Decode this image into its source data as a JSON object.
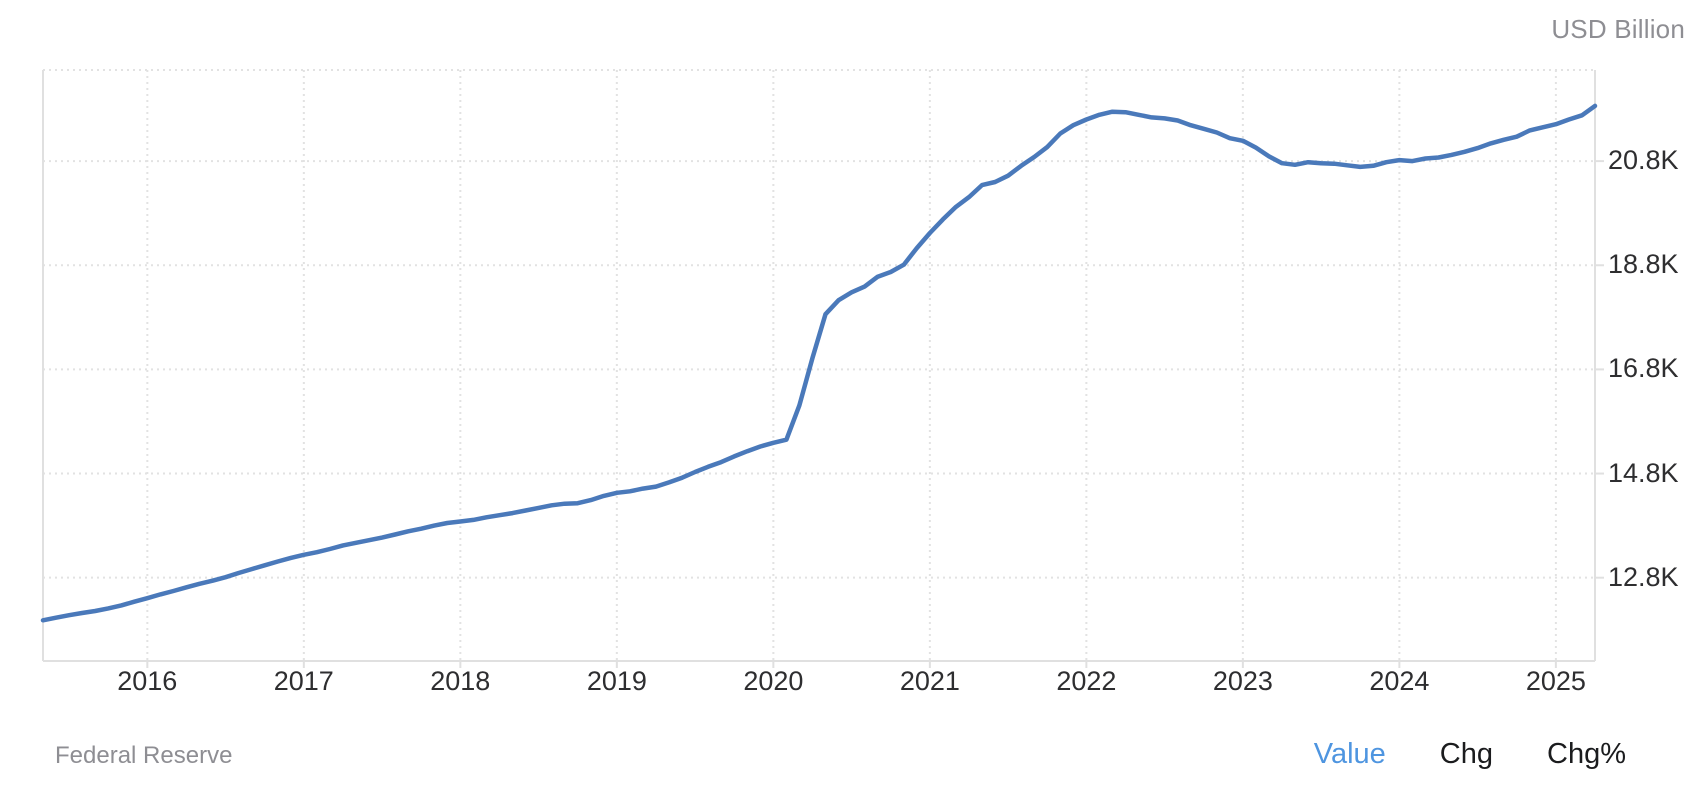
{
  "header": {
    "unit": "USD Billion"
  },
  "footer": {
    "source": "Federal Reserve",
    "toggles": [
      {
        "label": "Value",
        "active": true
      },
      {
        "label": "Chg",
        "active": false
      },
      {
        "label": "Chg%",
        "active": false
      }
    ]
  },
  "colors": {
    "line": "#4a79ba",
    "grid": "#e2e2e2",
    "plot_border": "#e0e0e0",
    "tick": "#e0e0e0",
    "axis_text": "#2e2e30",
    "muted_text": "#8e8e93",
    "toggle_active": "#4e95e0",
    "toggle_text": "#1b1c1e",
    "background": "#ffffff"
  },
  "chart_data": {
    "type": "line",
    "unit": "USD Billion",
    "source": "Federal Reserve",
    "grid": true,
    "legend_position": "bottom-right",
    "xlim": [
      2015.3333,
      2025.25
    ],
    "ylim": [
      11200,
      22550
    ],
    "x_ticks": [
      2016,
      2017,
      2018,
      2019,
      2020,
      2021,
      2022,
      2023,
      2024,
      2025
    ],
    "x_tick_labels": [
      "2016",
      "2017",
      "2018",
      "2019",
      "2020",
      "2021",
      "2022",
      "2023",
      "2024",
      "2025"
    ],
    "y_ticks": [
      20800,
      18800,
      16800,
      14800,
      12800
    ],
    "y_tick_labels": [
      "20.8K",
      "18.8K",
      "16.8K",
      "14.8K",
      "12.8K"
    ],
    "series": [
      {
        "name": "Value",
        "points": [
          [
            "2015-05",
            11982
          ],
          [
            "2015-06",
            12032
          ],
          [
            "2015-07",
            12080
          ],
          [
            "2015-08",
            12122
          ],
          [
            "2015-09",
            12160
          ],
          [
            "2015-10",
            12210
          ],
          [
            "2015-11",
            12268
          ],
          [
            "2015-12",
            12338
          ],
          [
            "2016-01",
            12407
          ],
          [
            "2016-02",
            12479
          ],
          [
            "2016-03",
            12545
          ],
          [
            "2016-04",
            12616
          ],
          [
            "2016-05",
            12683
          ],
          [
            "2016-06",
            12743
          ],
          [
            "2016-07",
            12810
          ],
          [
            "2016-08",
            12890
          ],
          [
            "2016-09",
            12965
          ],
          [
            "2016-10",
            13037
          ],
          [
            "2016-11",
            13110
          ],
          [
            "2016-12",
            13180
          ],
          [
            "2017-01",
            13240
          ],
          [
            "2017-02",
            13290
          ],
          [
            "2017-03",
            13350
          ],
          [
            "2017-04",
            13420
          ],
          [
            "2017-05",
            13470
          ],
          [
            "2017-06",
            13520
          ],
          [
            "2017-07",
            13570
          ],
          [
            "2017-08",
            13630
          ],
          [
            "2017-09",
            13690
          ],
          [
            "2017-10",
            13740
          ],
          [
            "2017-11",
            13800
          ],
          [
            "2017-12",
            13850
          ],
          [
            "2018-01",
            13880
          ],
          [
            "2018-02",
            13910
          ],
          [
            "2018-03",
            13960
          ],
          [
            "2018-04",
            14000
          ],
          [
            "2018-05",
            14040
          ],
          [
            "2018-06",
            14090
          ],
          [
            "2018-07",
            14140
          ],
          [
            "2018-08",
            14190
          ],
          [
            "2018-09",
            14220
          ],
          [
            "2018-10",
            14230
          ],
          [
            "2018-11",
            14290
          ],
          [
            "2018-12",
            14370
          ],
          [
            "2019-01",
            14430
          ],
          [
            "2019-02",
            14460
          ],
          [
            "2019-03",
            14510
          ],
          [
            "2019-04",
            14550
          ],
          [
            "2019-05",
            14630
          ],
          [
            "2019-06",
            14720
          ],
          [
            "2019-07",
            14830
          ],
          [
            "2019-08",
            14930
          ],
          [
            "2019-09",
            15020
          ],
          [
            "2019-10",
            15130
          ],
          [
            "2019-11",
            15230
          ],
          [
            "2019-12",
            15320
          ],
          [
            "2020-01",
            15390
          ],
          [
            "2020-02",
            15450
          ],
          [
            "2020-03",
            16110
          ],
          [
            "2020-04",
            17020
          ],
          [
            "2020-05",
            17860
          ],
          [
            "2020-06",
            18130
          ],
          [
            "2020-07",
            18280
          ],
          [
            "2020-08",
            18390
          ],
          [
            "2020-09",
            18580
          ],
          [
            "2020-10",
            18670
          ],
          [
            "2020-11",
            18810
          ],
          [
            "2020-12",
            19130
          ],
          [
            "2021-01",
            19420
          ],
          [
            "2021-02",
            19680
          ],
          [
            "2021-03",
            19920
          ],
          [
            "2021-04",
            20110
          ],
          [
            "2021-05",
            20340
          ],
          [
            "2021-06",
            20400
          ],
          [
            "2021-07",
            20520
          ],
          [
            "2021-08",
            20710
          ],
          [
            "2021-09",
            20880
          ],
          [
            "2021-10",
            21070
          ],
          [
            "2021-11",
            21330
          ],
          [
            "2021-12",
            21490
          ],
          [
            "2022-01",
            21600
          ],
          [
            "2022-02",
            21690
          ],
          [
            "2022-03",
            21750
          ],
          [
            "2022-04",
            21740
          ],
          [
            "2022-05",
            21690
          ],
          [
            "2022-06",
            21640
          ],
          [
            "2022-07",
            21620
          ],
          [
            "2022-08",
            21580
          ],
          [
            "2022-09",
            21490
          ],
          [
            "2022-10",
            21420
          ],
          [
            "2022-11",
            21350
          ],
          [
            "2022-12",
            21240
          ],
          [
            "2023-01",
            21190
          ],
          [
            "2023-02",
            21060
          ],
          [
            "2023-03",
            20890
          ],
          [
            "2023-04",
            20760
          ],
          [
            "2023-05",
            20730
          ],
          [
            "2023-06",
            20780
          ],
          [
            "2023-07",
            20760
          ],
          [
            "2023-08",
            20750
          ],
          [
            "2023-09",
            20720
          ],
          [
            "2023-10",
            20690
          ],
          [
            "2023-11",
            20710
          ],
          [
            "2023-12",
            20780
          ],
          [
            "2024-01",
            20820
          ],
          [
            "2024-02",
            20800
          ],
          [
            "2024-03",
            20850
          ],
          [
            "2024-04",
            20870
          ],
          [
            "2024-05",
            20920
          ],
          [
            "2024-06",
            20980
          ],
          [
            "2024-07",
            21050
          ],
          [
            "2024-08",
            21140
          ],
          [
            "2024-09",
            21210
          ],
          [
            "2024-10",
            21270
          ],
          [
            "2024-11",
            21390
          ],
          [
            "2024-12",
            21450
          ],
          [
            "2025-01",
            21510
          ],
          [
            "2025-02",
            21600
          ],
          [
            "2025-03",
            21680
          ],
          [
            "2025-04",
            21860
          ]
        ]
      }
    ]
  }
}
